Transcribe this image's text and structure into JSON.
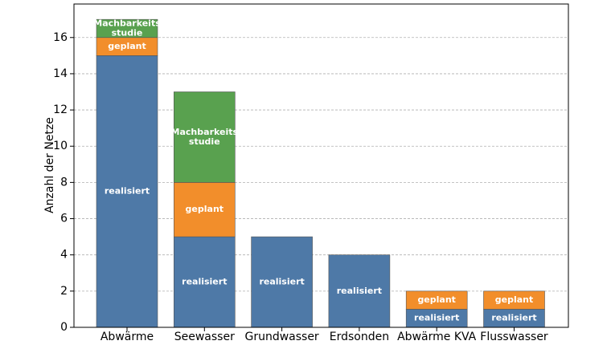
{
  "chart_data": {
    "type": "stacked_bar",
    "y_label": "Anzahl der Netze",
    "categories": [
      "Abwärme",
      "Seewasser",
      "Grundwasser",
      "Erdsonden",
      "Abwärme KVA",
      "Flusswasser"
    ],
    "series": [
      {
        "name": "realisiert",
        "color": "#4e79a7",
        "values": [
          15,
          5,
          5,
          4,
          1,
          1
        ]
      },
      {
        "name": "geplant",
        "color": "#f28e2b",
        "values": [
          1,
          3,
          0,
          0,
          1,
          1
        ]
      },
      {
        "name": "Machbarkeits\nstudie",
        "color": "#59a14f",
        "values": [
          1,
          5,
          0,
          0,
          0,
          0
        ]
      }
    ],
    "ylim": [
      0,
      17.85
    ],
    "yticks": [
      0,
      2,
      4,
      6,
      8,
      10,
      12,
      14,
      16
    ],
    "grid": true
  }
}
